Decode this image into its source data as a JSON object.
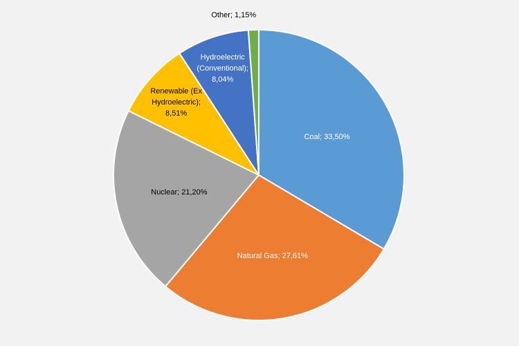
{
  "chart_data": {
    "type": "pie",
    "title": "",
    "slices": [
      {
        "label": "Coal; 33,50%",
        "name": "Coal",
        "value": 33.5,
        "color": "#5b9bd5",
        "text_color": "#ffffff"
      },
      {
        "label": "Natural Gas; 27,61%",
        "name": "Natural Gas",
        "value": 27.61,
        "color": "#ed7d31",
        "text_color": "#ffffff"
      },
      {
        "label": "Nuclear; 21,20%",
        "name": "Nuclear",
        "value": 21.2,
        "color": "#a5a5a5",
        "text_color": "#000000"
      },
      {
        "label": "Renewable (Ex|Hydroelectric);|8,51%",
        "name": "Renewable (Ex Hydroelectric)",
        "value": 8.51,
        "color": "#ffc000",
        "text_color": "#000000"
      },
      {
        "label": "Hydroelectric|(Conventional);|8,04%",
        "name": "Hydroelectric (Conventional)",
        "value": 8.04,
        "color": "#4472c4",
        "text_color": "#ffffff"
      },
      {
        "label": "Other; 1,15%",
        "name": "Other",
        "value": 1.15,
        "color": "#70ad47",
        "text_color": "#000000",
        "outside": true
      }
    ],
    "start_angle": "12 o'clock",
    "direction": "clockwise",
    "legend": "none"
  }
}
